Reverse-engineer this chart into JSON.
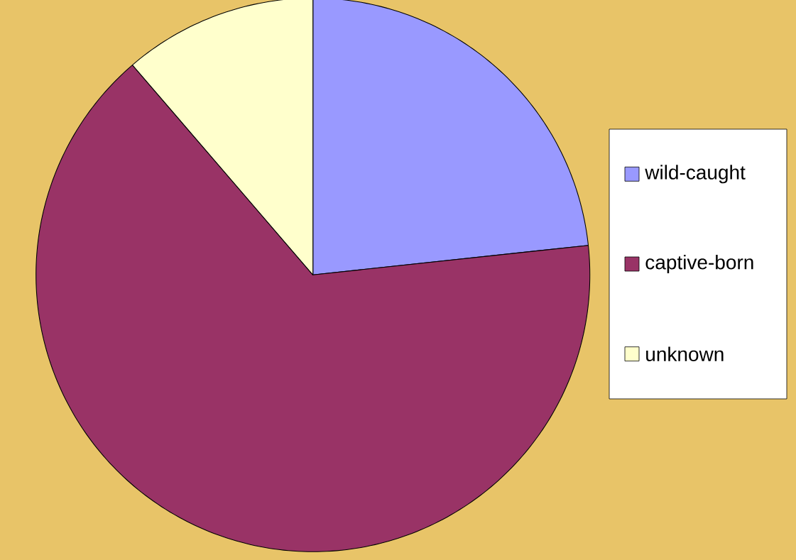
{
  "chart_data": {
    "type": "pie",
    "categories": [
      "wild-caught",
      "captive-born",
      "unknown"
    ],
    "values": [
      23.3,
      65.4,
      11.3
    ],
    "colors": [
      "#9999ff",
      "#993366",
      "#ffffcc"
    ],
    "legend": "right"
  }
}
